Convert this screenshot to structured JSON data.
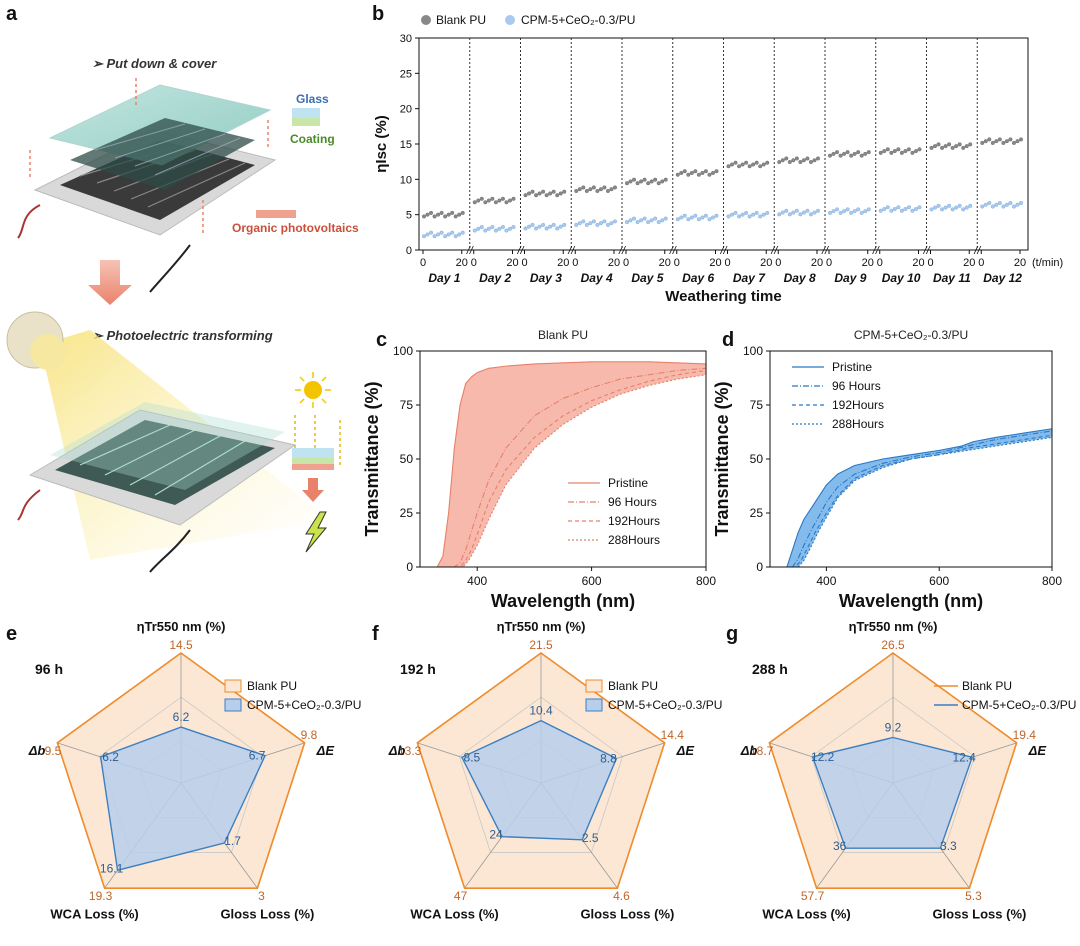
{
  "panels": {
    "a": {
      "label": "a",
      "step1": "➢ Put down & cover",
      "step2": "➢ Photoelectric transforming",
      "glass": "Glass",
      "coating": "Coating",
      "opv": "Organic photovoltaics"
    },
    "b": {
      "label": "b"
    },
    "c": {
      "label": "c"
    },
    "d": {
      "label": "d"
    },
    "e": {
      "label": "e"
    },
    "f": {
      "label": "f"
    },
    "g": {
      "label": "g"
    }
  },
  "colors": {
    "blank": "#888888",
    "cpm_marker": "#a9c9ee",
    "blank_fill": "#f3a28f",
    "blank_line": "#e8806a",
    "cpm_fill": "#5aa6e6",
    "cpm_line": "#2a78c6",
    "radar_blank": "#ef8b2c",
    "radar_blank_fill": "#fbe7d3",
    "radar_cpm": "#3b7fc4",
    "radar_cpm_fill": "#b7cfec"
  },
  "chart_data": [
    {
      "id": "b",
      "type": "scatter",
      "legend": [
        "Blank PU",
        "CPM-5+CeO₂-0.3/PU"
      ],
      "ylabel": "ηIsc (%)",
      "xlabel": "Weathering time",
      "x_unit": "(t/min)",
      "ylim": [
        0,
        30
      ],
      "yticks": [
        0,
        5,
        10,
        15,
        20,
        25,
        30
      ],
      "xticks_per_day": [
        0,
        20
      ],
      "days": [
        "Day 1",
        "Day 2",
        "Day 3",
        "Day 4",
        "Day 5",
        "Day 6",
        "Day 7",
        "Day 8",
        "Day 9",
        "Day 10",
        "Day 11",
        "Day 12"
      ],
      "series": [
        {
          "name": "Blank PU",
          "values": [
            5.0,
            7.0,
            8.0,
            8.6,
            9.7,
            10.9,
            12.1,
            12.7,
            13.6,
            14.0,
            14.7,
            15.4
          ]
        },
        {
          "name": "CPM-5+CeO₂-0.3/PU",
          "values": [
            2.2,
            3.0,
            3.3,
            3.8,
            4.2,
            4.6,
            5.0,
            5.3,
            5.5,
            5.8,
            6.0,
            6.4
          ]
        }
      ]
    },
    {
      "id": "c",
      "type": "area",
      "title": "Blank PU",
      "xlabel": "Wavelength (nm)",
      "ylabel": "Transmittance (%)",
      "xlim": [
        300,
        800
      ],
      "ylim": [
        0,
        100
      ],
      "xticks": [
        400,
        600,
        800
      ],
      "yticks": [
        0,
        25,
        50,
        75,
        100
      ],
      "legend": [
        "Pristine",
        "96 Hours",
        "192Hours",
        "288Hours"
      ],
      "series": [
        {
          "name": "Pristine",
          "x": [
            300,
            330,
            340,
            350,
            360,
            370,
            380,
            390,
            400,
            420,
            450,
            500,
            600,
            700,
            800
          ],
          "y": [
            0,
            0,
            5,
            25,
            55,
            75,
            85,
            88,
            90,
            92,
            93,
            94,
            95,
            95,
            94
          ]
        },
        {
          "name": "96 Hours",
          "x": [
            300,
            360,
            370,
            380,
            400,
            420,
            450,
            500,
            550,
            600,
            650,
            700,
            750,
            800
          ],
          "y": [
            0,
            0,
            2,
            8,
            25,
            40,
            55,
            70,
            78,
            83,
            87,
            89,
            91,
            92
          ]
        },
        {
          "name": "192Hours",
          "x": [
            300,
            370,
            380,
            390,
            400,
            420,
            450,
            500,
            550,
            600,
            650,
            700,
            750,
            800
          ],
          "y": [
            0,
            0,
            3,
            8,
            15,
            30,
            45,
            60,
            70,
            77,
            82,
            86,
            89,
            91
          ]
        },
        {
          "name": "288Hours",
          "x": [
            300,
            375,
            385,
            400,
            420,
            450,
            500,
            550,
            600,
            650,
            700,
            750,
            800
          ],
          "y": [
            0,
            0,
            3,
            10,
            22,
            38,
            55,
            66,
            74,
            80,
            84,
            87,
            89
          ]
        }
      ]
    },
    {
      "id": "d",
      "type": "area",
      "title": "CPM-5+CeO₂-0.3/PU",
      "xlabel": "Wavelength (nm)",
      "ylabel": "Transmittance (%)",
      "xlim": [
        300,
        800
      ],
      "ylim": [
        0,
        100
      ],
      "xticks": [
        400,
        600,
        800
      ],
      "yticks": [
        0,
        25,
        50,
        75,
        100
      ],
      "legend": [
        "Pristine",
        "96 Hours",
        "192Hours",
        "288Hours"
      ],
      "series": [
        {
          "name": "Pristine",
          "x": [
            300,
            330,
            340,
            350,
            360,
            375,
            390,
            400,
            420,
            450,
            500,
            550,
            600,
            640,
            660,
            700,
            750,
            800
          ],
          "y": [
            0,
            0,
            8,
            16,
            22,
            28,
            34,
            38,
            43,
            47,
            50,
            52,
            54,
            56,
            58,
            60,
            62,
            64
          ]
        },
        {
          "name": "96 Hours",
          "x": [
            300,
            340,
            350,
            360,
            375,
            390,
            400,
            420,
            450,
            500,
            550,
            600,
            650,
            700,
            750,
            800
          ],
          "y": [
            0,
            0,
            4,
            10,
            18,
            25,
            30,
            37,
            43,
            48,
            51,
            53,
            56,
            59,
            61,
            63
          ]
        },
        {
          "name": "192Hours",
          "x": [
            300,
            345,
            355,
            365,
            380,
            400,
            420,
            450,
            500,
            550,
            600,
            650,
            700,
            750,
            800
          ],
          "y": [
            0,
            0,
            3,
            8,
            16,
            25,
            33,
            41,
            47,
            50,
            52,
            55,
            57,
            59,
            61
          ]
        },
        {
          "name": "288Hours",
          "x": [
            300,
            350,
            360,
            370,
            385,
            400,
            420,
            450,
            500,
            550,
            600,
            650,
            700,
            750,
            800
          ],
          "y": [
            0,
            0,
            3,
            8,
            16,
            23,
            32,
            40,
            46,
            50,
            52,
            54,
            56,
            58,
            60
          ]
        }
      ]
    },
    {
      "id": "e",
      "type": "radar",
      "hours": "96 h",
      "axes": [
        "ηTr550 nm (%)",
        "ΔE",
        "Gloss Loss (%)",
        "WCA Loss (%)",
        "Δb"
      ],
      "legend": [
        "Blank PU",
        "CPM-5+CeO₂-0.3/PU"
      ],
      "legend_style": "box",
      "series": [
        {
          "name": "Blank PU",
          "values": [
            14.5,
            9.8,
            3,
            19.3,
            9.5
          ]
        },
        {
          "name": "CPM-5+CeO₂-0.3/PU",
          "values": [
            6.2,
            6.7,
            1.7,
            16.1,
            6.2
          ]
        }
      ],
      "cpm_frac": [
        0.43,
        0.68,
        0.57,
        0.83,
        0.65
      ]
    },
    {
      "id": "f",
      "type": "radar",
      "hours": "192 h",
      "axes": [
        "ηTr550 nm (%)",
        "ΔE",
        "Gloss Loss (%)",
        "WCA Loss (%)",
        "Δb"
      ],
      "legend": [
        "Blank PU",
        "CPM-5+CeO₂-0.3/PU"
      ],
      "legend_style": "box",
      "series": [
        {
          "name": "Blank PU",
          "values": [
            21.5,
            14.4,
            4.6,
            47,
            13.3
          ]
        },
        {
          "name": "CPM-5+CeO₂-0.3/PU",
          "values": [
            10.4,
            8.8,
            2.5,
            24,
            8.5
          ]
        }
      ],
      "cpm_frac": [
        0.48,
        0.61,
        0.54,
        0.51,
        0.64
      ]
    },
    {
      "id": "g",
      "type": "radar",
      "hours": "288 h",
      "axes": [
        "ηTr550 nm (%)",
        "ΔE",
        "Gloss Loss (%)",
        "WCA Loss (%)",
        "Δb"
      ],
      "legend": [
        "Blank PU",
        "CPM-5+CeO₂-0.3/PU"
      ],
      "legend_style": "line",
      "series": [
        {
          "name": "Blank PU",
          "values": [
            26.5,
            19.4,
            5.3,
            57.7,
            18.7
          ]
        },
        {
          "name": "CPM-5+CeO₂-0.3/PU",
          "values": [
            9.2,
            12.4,
            3.3,
            36,
            12.2
          ]
        }
      ],
      "cpm_frac": [
        0.35,
        0.64,
        0.62,
        0.62,
        0.65
      ]
    }
  ]
}
